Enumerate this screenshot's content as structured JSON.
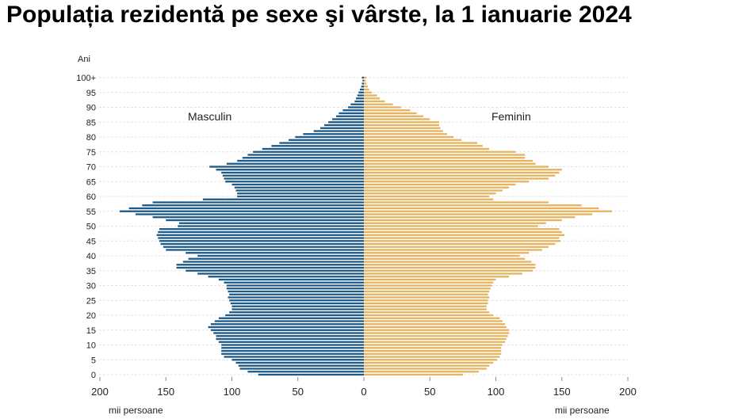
{
  "title": "Populația rezidentă pe sexe şi vârste, la 1 ianuarie 2024",
  "chart_data": {
    "type": "bar",
    "orientation": "horizontal-population-pyramid",
    "y_axis_label": "Ani",
    "y_ticks": [
      "0",
      "5",
      "10",
      "15",
      "20",
      "25",
      "30",
      "35",
      "40",
      "45",
      "50",
      "55",
      "60",
      "65",
      "70",
      "75",
      "80",
      "85",
      "90",
      "95",
      "100+"
    ],
    "x_ticks": [
      "200",
      "150",
      "100",
      "50",
      "0",
      "50",
      "100",
      "150",
      "200"
    ],
    "x_unit_left": "mii persoane",
    "x_unit_right": "mii persoane",
    "xlim": [
      0,
      200
    ],
    "grid": true,
    "colors": {
      "male": "#1e5a87",
      "female": "#e6b35f"
    },
    "ages": [
      "0",
      "1",
      "2",
      "3",
      "4",
      "5",
      "6",
      "7",
      "8",
      "9",
      "10",
      "11",
      "12",
      "13",
      "14",
      "15",
      "16",
      "17",
      "18",
      "19",
      "20",
      "21",
      "22",
      "23",
      "24",
      "25",
      "26",
      "27",
      "28",
      "29",
      "30",
      "31",
      "32",
      "33",
      "34",
      "35",
      "36",
      "37",
      "38",
      "39",
      "40",
      "41",
      "42",
      "43",
      "44",
      "45",
      "46",
      "47",
      "48",
      "49",
      "50",
      "51",
      "52",
      "53",
      "54",
      "55",
      "56",
      "57",
      "58",
      "59",
      "60",
      "61",
      "62",
      "63",
      "64",
      "65",
      "66",
      "67",
      "68",
      "69",
      "70",
      "71",
      "72",
      "73",
      "74",
      "75",
      "76",
      "77",
      "78",
      "79",
      "80",
      "81",
      "82",
      "83",
      "84",
      "85",
      "86",
      "87",
      "88",
      "89",
      "90",
      "91",
      "92",
      "93",
      "94",
      "95",
      "96",
      "97",
      "98",
      "99",
      "100+"
    ],
    "series": [
      {
        "name": "Masculin",
        "side": "left",
        "values": [
          80,
          88,
          94,
          95,
          97,
          100,
          106,
          108,
          108,
          108,
          108,
          110,
          112,
          112,
          114,
          116,
          118,
          116,
          113,
          110,
          105,
          102,
          100,
          100,
          101,
          102,
          103,
          102,
          103,
          104,
          104,
          106,
          110,
          118,
          126,
          135,
          142,
          142,
          137,
          133,
          126,
          135,
          150,
          152,
          154,
          155,
          156,
          157,
          156,
          155,
          141,
          140,
          150,
          160,
          173,
          185,
          178,
          168,
          160,
          122,
          96,
          96,
          97,
          98,
          100,
          105,
          106,
          107,
          108,
          112,
          117,
          104,
          96,
          92,
          88,
          84,
          77,
          70,
          64,
          57,
          52,
          46,
          38,
          33,
          30,
          27,
          24,
          21,
          19,
          16,
          12,
          10,
          7,
          6,
          5,
          4,
          3,
          2,
          1.5,
          1,
          1.5
        ]
      },
      {
        "name": "Feminin",
        "side": "right",
        "values": [
          75,
          87,
          93,
          95,
          98,
          101,
          103,
          104,
          104,
          104,
          105,
          107,
          108,
          109,
          110,
          110,
          108,
          107,
          105,
          103,
          98,
          95,
          93,
          93,
          94,
          94,
          95,
          94,
          95,
          96,
          97,
          98,
          100,
          110,
          120,
          128,
          130,
          130,
          127,
          122,
          118,
          125,
          135,
          140,
          145,
          149,
          148,
          152,
          150,
          148,
          132,
          138,
          150,
          160,
          173,
          188,
          178,
          165,
          140,
          98,
          95,
          100,
          105,
          110,
          115,
          125,
          140,
          145,
          148,
          150,
          140,
          130,
          128,
          122,
          122,
          115,
          95,
          90,
          86,
          74,
          68,
          63,
          60,
          58,
          57,
          57,
          50,
          45,
          40,
          35,
          28,
          22,
          16,
          12,
          10,
          6,
          4,
          3,
          2,
          1.5,
          2
        ]
      }
    ]
  }
}
